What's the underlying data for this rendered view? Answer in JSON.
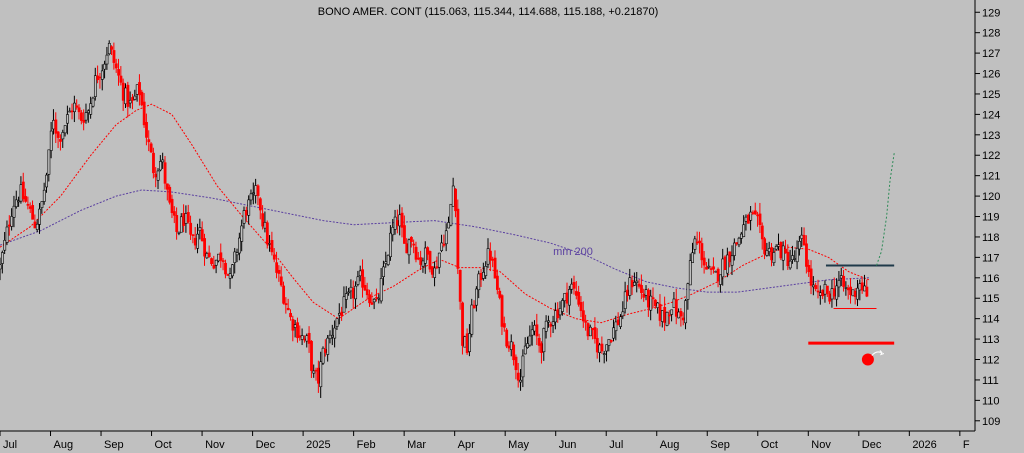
{
  "chart_data": {
    "type": "candlestick",
    "title": "BONO AMER. CONT (115.063, 115.344, 114.688, 115.188, +0.21870)",
    "ylim": [
      108.5,
      129.6
    ],
    "y_ticks": [
      109,
      110,
      111,
      112,
      113,
      114,
      115,
      116,
      117,
      118,
      119,
      120,
      121,
      122,
      123,
      124,
      125,
      126,
      127,
      128,
      129
    ],
    "x_labels": [
      "Jul",
      "Aug",
      "Sep",
      "Oct",
      "Nov",
      "Dec",
      "2025",
      "Feb",
      "Mar",
      "Apr",
      "May",
      "Jun",
      "Jul",
      "Aug",
      "Sep",
      "Oct",
      "Nov",
      "Dec",
      "2026",
      "F"
    ],
    "x_label_months": [
      0,
      1,
      2,
      3,
      4,
      5,
      6,
      7,
      8,
      9,
      10,
      11,
      12,
      13,
      14,
      15,
      16,
      17,
      18,
      19
    ],
    "x_range_months": [
      0,
      19.3
    ],
    "grid": false,
    "colors": {
      "up": "#000000",
      "down": "#ff0000",
      "background": "#c0c0c0",
      "ma_short": "#ff0000",
      "ma_long": "#5a3fa0",
      "level_line": "#1f3a4a",
      "support_line": "#ff0000",
      "projection": "#2e8b57"
    },
    "close_path": [
      [
        0.0,
        116.5
      ],
      [
        0.12,
        118.0
      ],
      [
        0.25,
        119.6
      ],
      [
        0.4,
        120.2
      ],
      [
        0.55,
        119.5
      ],
      [
        0.7,
        118.6
      ],
      [
        0.8,
        119.2
      ],
      [
        0.95,
        121.5
      ],
      [
        1.05,
        124.0
      ],
      [
        1.15,
        122.8
      ],
      [
        1.3,
        123.6
      ],
      [
        1.45,
        124.5
      ],
      [
        1.6,
        123.8
      ],
      [
        1.75,
        124.2
      ],
      [
        1.9,
        125.8
      ],
      [
        2.05,
        126.5
      ],
      [
        2.15,
        127.4
      ],
      [
        2.3,
        126.2
      ],
      [
        2.45,
        125.0
      ],
      [
        2.6,
        124.4
      ],
      [
        2.75,
        125.3
      ],
      [
        2.9,
        123.0
      ],
      [
        3.05,
        121.2
      ],
      [
        3.2,
        121.8
      ],
      [
        3.35,
        119.5
      ],
      [
        3.5,
        118.2
      ],
      [
        3.65,
        119.0
      ],
      [
        3.8,
        117.6
      ],
      [
        3.95,
        118.4
      ],
      [
        4.1,
        117.0
      ],
      [
        4.25,
        116.8
      ],
      [
        4.4,
        117.2
      ],
      [
        4.55,
        115.8
      ],
      [
        4.7,
        117.5
      ],
      [
        4.85,
        119.3
      ],
      [
        5.0,
        119.8
      ],
      [
        5.1,
        120.3
      ],
      [
        5.2,
        118.8
      ],
      [
        5.3,
        117.8
      ],
      [
        5.45,
        116.5
      ],
      [
        5.6,
        115.3
      ],
      [
        5.75,
        114.0
      ],
      [
        5.9,
        113.4
      ],
      [
        6.0,
        113.0
      ],
      [
        6.1,
        112.8
      ],
      [
        6.2,
        111.2
      ],
      [
        6.3,
        111.0
      ],
      [
        6.4,
        112.4
      ],
      [
        6.55,
        113.2
      ],
      [
        6.7,
        114.2
      ],
      [
        6.85,
        114.8
      ],
      [
        7.0,
        115.3
      ],
      [
        7.15,
        116.0
      ],
      [
        7.3,
        115.2
      ],
      [
        7.45,
        114.6
      ],
      [
        7.6,
        116.3
      ],
      [
        7.75,
        118.2
      ],
      [
        7.9,
        119.0
      ],
      [
        8.0,
        117.5
      ],
      [
        8.15,
        118.0
      ],
      [
        8.3,
        116.8
      ],
      [
        8.45,
        117.2
      ],
      [
        8.6,
        116.3
      ],
      [
        8.75,
        117.8
      ],
      [
        8.88,
        118.5
      ],
      [
        8.95,
        120.2
      ],
      [
        9.0,
        121.0
      ],
      [
        9.05,
        117.0
      ],
      [
        9.15,
        113.0
      ],
      [
        9.25,
        112.5
      ],
      [
        9.35,
        114.5
      ],
      [
        9.5,
        116.0
      ],
      [
        9.6,
        116.8
      ],
      [
        9.7,
        117.2
      ],
      [
        9.8,
        116.0
      ],
      [
        9.9,
        114.5
      ],
      [
        10.0,
        113.2
      ],
      [
        10.1,
        112.8
      ],
      [
        10.2,
        112.0
      ],
      [
        10.3,
        111.0
      ],
      [
        10.4,
        112.5
      ],
      [
        10.55,
        113.5
      ],
      [
        10.7,
        112.6
      ],
      [
        10.85,
        113.8
      ],
      [
        11.0,
        114.3
      ],
      [
        11.15,
        114.8
      ],
      [
        11.3,
        115.6
      ],
      [
        11.45,
        115.0
      ],
      [
        11.6,
        113.5
      ],
      [
        11.75,
        113.0
      ],
      [
        11.9,
        112.4
      ],
      [
        12.0,
        112.8
      ],
      [
        12.15,
        113.5
      ],
      [
        12.3,
        114.2
      ],
      [
        12.45,
        115.6
      ],
      [
        12.55,
        116.0
      ],
      [
        12.7,
        115.3
      ],
      [
        12.85,
        114.8
      ],
      [
        13.0,
        114.4
      ],
      [
        13.15,
        114.0
      ],
      [
        13.3,
        114.8
      ],
      [
        13.45,
        114.0
      ],
      [
        13.55,
        114.3
      ],
      [
        13.65,
        116.4
      ],
      [
        13.75,
        117.8
      ],
      [
        13.85,
        117.5
      ],
      [
        14.0,
        116.3
      ],
      [
        14.15,
        116.0
      ],
      [
        14.3,
        116.6
      ],
      [
        14.45,
        117.2
      ],
      [
        14.6,
        117.8
      ],
      [
        14.7,
        118.4
      ],
      [
        14.85,
        119.0
      ],
      [
        15.0,
        118.6
      ],
      [
        15.1,
        117.6
      ],
      [
        15.25,
        117.2
      ],
      [
        15.4,
        117.5
      ],
      [
        15.55,
        117.0
      ],
      [
        15.7,
        116.8
      ],
      [
        15.8,
        117.3
      ],
      [
        15.9,
        118.0
      ],
      [
        16.0,
        116.2
      ],
      [
        16.1,
        115.4
      ],
      [
        16.2,
        114.9
      ],
      [
        16.3,
        115.3
      ],
      [
        16.45,
        115.2
      ],
      [
        16.6,
        115.8
      ],
      [
        16.75,
        115.4
      ],
      [
        16.9,
        115.2
      ],
      [
        17.0,
        115.8
      ],
      [
        17.1,
        115.5
      ],
      [
        17.15,
        114.8
      ],
      [
        17.2,
        115.2
      ]
    ],
    "ma_short_path": [
      [
        0.0,
        117.5
      ],
      [
        0.6,
        118.5
      ],
      [
        1.2,
        120.0
      ],
      [
        1.8,
        122.0
      ],
      [
        2.3,
        123.5
      ],
      [
        2.7,
        124.2
      ],
      [
        3.0,
        124.5
      ],
      [
        3.4,
        124.0
      ],
      [
        3.8,
        122.5
      ],
      [
        4.3,
        120.5
      ],
      [
        4.8,
        119.0
      ],
      [
        5.3,
        117.6
      ],
      [
        5.8,
        116.0
      ],
      [
        6.2,
        114.8
      ],
      [
        6.7,
        114.0
      ],
      [
        7.3,
        115.0
      ],
      [
        7.8,
        115.6
      ],
      [
        8.3,
        116.4
      ],
      [
        8.7,
        116.9
      ],
      [
        9.1,
        116.5
      ],
      [
        9.5,
        116.5
      ],
      [
        9.9,
        116.3
      ],
      [
        10.4,
        115.2
      ],
      [
        10.9,
        114.5
      ],
      [
        11.4,
        114.0
      ],
      [
        11.9,
        113.8
      ],
      [
        12.4,
        114.2
      ],
      [
        12.9,
        114.5
      ],
      [
        13.3,
        114.8
      ],
      [
        13.7,
        115.2
      ],
      [
        14.2,
        115.8
      ],
      [
        14.7,
        116.6
      ],
      [
        15.2,
        117.2
      ],
      [
        15.6,
        117.5
      ],
      [
        16.0,
        117.4
      ],
      [
        16.4,
        117.0
      ],
      [
        16.8,
        116.3
      ],
      [
        17.2,
        115.9
      ]
    ],
    "ma_long_path": [
      [
        0.0,
        117.6
      ],
      [
        0.8,
        118.3
      ],
      [
        1.6,
        119.3
      ],
      [
        2.3,
        120.0
      ],
      [
        2.8,
        120.3
      ],
      [
        3.4,
        120.2
      ],
      [
        4.2,
        119.9
      ],
      [
        5.0,
        119.5
      ],
      [
        5.8,
        119.1
      ],
      [
        6.4,
        118.8
      ],
      [
        7.0,
        118.6
      ],
      [
        7.8,
        118.7
      ],
      [
        8.6,
        118.8
      ],
      [
        9.4,
        118.5
      ],
      [
        10.2,
        118.1
      ],
      [
        10.9,
        117.7
      ],
      [
        11.6,
        117.1
      ],
      [
        12.2,
        116.4
      ],
      [
        12.8,
        115.8
      ],
      [
        13.4,
        115.5
      ],
      [
        14.0,
        115.3
      ],
      [
        14.6,
        115.3
      ],
      [
        15.2,
        115.5
      ],
      [
        15.8,
        115.7
      ],
      [
        16.4,
        115.9
      ],
      [
        17.2,
        116.0
      ]
    ],
    "level_line": {
      "y": 116.6,
      "x": [
        16.35,
        17.7
      ]
    },
    "support_line": {
      "y": 112.8,
      "x": [
        16.0,
        17.7
      ]
    },
    "short_line": {
      "y": 114.5,
      "x": [
        16.5,
        17.35
      ]
    },
    "projection": [
      [
        17.35,
        116.6
      ],
      [
        17.45,
        117.3
      ],
      [
        17.55,
        119.0
      ],
      [
        17.62,
        120.8
      ],
      [
        17.7,
        122.1
      ]
    ],
    "marker": {
      "x": 17.18,
      "y": 112.0
    },
    "annotation": {
      "text": "mm 200",
      "x": 10.95,
      "y": 117.3
    }
  }
}
